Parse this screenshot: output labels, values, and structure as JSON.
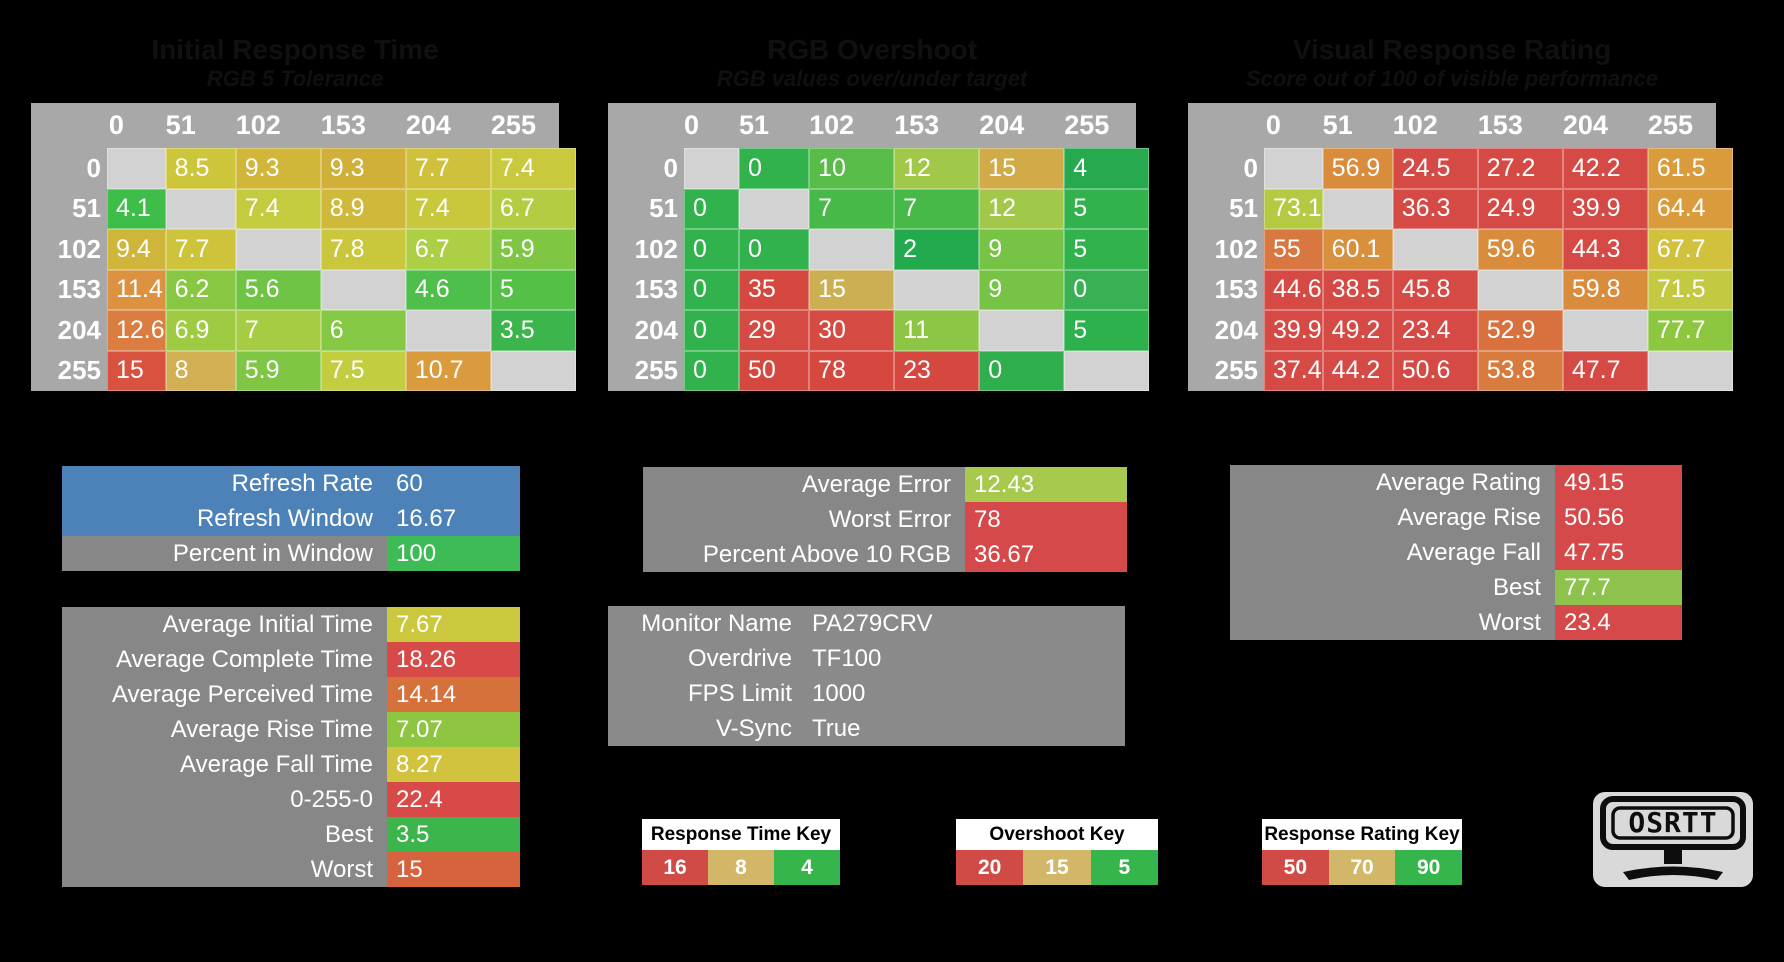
{
  "chart_data": [
    {
      "type": "heatmap",
      "title": "Initial Response Time",
      "subtitle": "RGB 5 Tolerance",
      "x": [
        "0",
        "51",
        "102",
        "153",
        "204",
        "255"
      ],
      "y": [
        "0",
        "51",
        "102",
        "153",
        "204",
        "255"
      ],
      "values": [
        [
          null,
          8.5,
          9.3,
          9.3,
          7.7,
          7.4
        ],
        [
          4.1,
          null,
          7.4,
          8.9,
          7.4,
          6.7
        ],
        [
          9.4,
          7.7,
          null,
          7.8,
          6.7,
          5.9
        ],
        [
          11.4,
          6.2,
          5.6,
          null,
          4.6,
          5
        ],
        [
          12.6,
          6.9,
          7,
          6,
          null,
          3.5
        ],
        [
          15,
          8,
          5.9,
          7.5,
          10.7,
          null
        ]
      ],
      "cell_colors": [
        [
          "#d2d2d2",
          "#cdc63b",
          "#d1b63a",
          "#d0b039",
          "#cfc13b",
          "#c9c93d"
        ],
        [
          "#3ebd49",
          "#d2d2d2",
          "#c4cb3e",
          "#d0b93a",
          "#c9c83d",
          "#b2cd42"
        ],
        [
          "#d0b53b",
          "#cdc43c",
          "#d2d2d2",
          "#cbc73d",
          "#accf45",
          "#7ec644"
        ],
        [
          "#dc9240",
          "#87c742",
          "#6fc446",
          "#d2d2d2",
          "#4fbf4b",
          "#55c048"
        ],
        [
          "#db7c41",
          "#9fcb42",
          "#a5cc43",
          "#84c843",
          "#d2d2d2",
          "#3bb54c"
        ],
        [
          "#d8523f",
          "#d2af53",
          "#7ec644",
          "#c2cd3f",
          "#d99b3d",
          "#d2d2d2"
        ]
      ]
    },
    {
      "type": "heatmap",
      "title": "RGB Overshoot",
      "subtitle": "RGB values over/under target",
      "x": [
        "0",
        "51",
        "102",
        "153",
        "204",
        "255"
      ],
      "y": [
        "0",
        "51",
        "102",
        "153",
        "204",
        "255"
      ],
      "values": [
        [
          null,
          0,
          10,
          12,
          15,
          4
        ],
        [
          0,
          null,
          7,
          7,
          12,
          5
        ],
        [
          0,
          0,
          null,
          2,
          9,
          5
        ],
        [
          0,
          35,
          15,
          null,
          9,
          0
        ],
        [
          0,
          29,
          30,
          11,
          null,
          5
        ],
        [
          0,
          50,
          78,
          23,
          0,
          null
        ]
      ],
      "cell_colors": [
        [
          "#d2d2d2",
          "#31b24c",
          "#58bc48",
          "#a2c84a",
          "#d0ab48",
          "#27a950"
        ],
        [
          "#31b24c",
          "#d2d2d2",
          "#47b948",
          "#47b948",
          "#a2c84a",
          "#31b24c"
        ],
        [
          "#31b24c",
          "#31b24c",
          "#d2d2d2",
          "#23aa4e",
          "#77c345",
          "#31b24c"
        ],
        [
          "#31b24c",
          "#d5483f",
          "#ccae53",
          "#d2d2d2",
          "#77c345",
          "#39b054"
        ],
        [
          "#31b24c",
          "#d54a42",
          "#d54a42",
          "#8dc545",
          "#d2d2d2",
          "#2db14d"
        ],
        [
          "#31b24c",
          "#d5483f",
          "#d5483f",
          "#d5483f",
          "#2fae4d",
          "#d2d2d2"
        ]
      ]
    },
    {
      "type": "heatmap",
      "title": "Visual Response Rating",
      "subtitle": "Score out of 100 of visible performance",
      "x": [
        "0",
        "51",
        "102",
        "153",
        "204",
        "255"
      ],
      "y": [
        "0",
        "51",
        "102",
        "153",
        "204",
        "255"
      ],
      "values": [
        [
          null,
          56.9,
          24.5,
          27.2,
          42.2,
          61.5
        ],
        [
          73.1,
          null,
          36.3,
          24.9,
          39.9,
          64.4
        ],
        [
          55,
          60.1,
          null,
          59.6,
          44.3,
          67.7
        ],
        [
          44.6,
          38.5,
          45.8,
          null,
          59.8,
          71.5
        ],
        [
          39.9,
          49.2,
          23.4,
          52.9,
          null,
          77.7
        ],
        [
          37.4,
          44.2,
          50.6,
          53.8,
          47.7,
          null
        ]
      ],
      "cell_colors": [
        [
          "#d2d2d2",
          "#d98d3c",
          "#d54a45",
          "#d54a45",
          "#d54a45",
          "#d99b3b"
        ],
        [
          "#b6c943",
          "#d2d2d2",
          "#d54a45",
          "#d54a45",
          "#d54a45",
          "#d99b3b"
        ],
        [
          "#d8773f",
          "#d9903c",
          "#d2d2d2",
          "#d98d3c",
          "#d54a45",
          "#d2c13c"
        ],
        [
          "#d54a45",
          "#d54a45",
          "#d54a45",
          "#d2d2d2",
          "#d98d3c",
          "#c3c941"
        ],
        [
          "#d54a45",
          "#d54a45",
          "#d54a45",
          "#d8713e",
          "#d2d2d2",
          "#8dc63f"
        ],
        [
          "#d54a45",
          "#d54a45",
          "#d54a45",
          "#d87b3e",
          "#d54a45",
          "#d2d2d2"
        ]
      ]
    }
  ],
  "panels": {
    "refresh": {
      "rows": [
        {
          "label": "Refresh Rate",
          "value": "60",
          "row_bg": "#4d82b8"
        },
        {
          "label": "Refresh Window",
          "value": "16.67",
          "row_bg": "#4d82b8"
        },
        {
          "label": "Percent in Window",
          "value": "100",
          "value_bg": "#3eba57"
        }
      ]
    },
    "times": {
      "rows": [
        {
          "label": "Average Initial Time",
          "value": "7.67",
          "value_bg": "#ccc83d"
        },
        {
          "label": "Average Complete Time",
          "value": "18.26",
          "value_bg": "#d84a47"
        },
        {
          "label": "Average Perceived Time",
          "value": "14.14",
          "value_bg": "#d7713c"
        },
        {
          "label": "Average Rise Time",
          "value": "7.07",
          "value_bg": "#8dc440"
        },
        {
          "label": "Average Fall Time",
          "value": "8.27",
          "value_bg": "#d2c33e"
        },
        {
          "label": "0-255-0",
          "value": "22.4",
          "value_bg": "#d84a47"
        },
        {
          "label": "Best",
          "value": "3.5",
          "value_bg": "#3bb54c"
        },
        {
          "label": "Worst",
          "value": "15",
          "value_bg": "#d6633d"
        }
      ]
    },
    "error": {
      "rows": [
        {
          "label": "Average Error",
          "value": "12.43",
          "value_bg": "#a7c94d"
        },
        {
          "label": "Worst Error",
          "value": "78",
          "value_bg": "#d5494a"
        },
        {
          "label": "Percent Above 10 RGB",
          "value": "36.67",
          "value_bg": "#d5494a"
        }
      ]
    },
    "monitor": {
      "rows": [
        {
          "label": "Monitor Name",
          "value": "PA279CRV"
        },
        {
          "label": "Overdrive",
          "value": "TF100"
        },
        {
          "label": "FPS Limit",
          "value": "1000"
        },
        {
          "label": "V-Sync",
          "value": "True"
        }
      ]
    },
    "rating": {
      "rows": [
        {
          "label": "Average Rating",
          "value": "49.15",
          "value_bg": "#d5494a"
        },
        {
          "label": "Average Rise",
          "value": "50.56",
          "value_bg": "#d5494a"
        },
        {
          "label": "Average Fall",
          "value": "47.75",
          "value_bg": "#d5494a"
        },
        {
          "label": "Best",
          "value": "77.7",
          "value_bg": "#8dc34c"
        },
        {
          "label": "Worst",
          "value": "23.4",
          "value_bg": "#d5494a"
        }
      ]
    }
  },
  "keys": [
    {
      "title": "Response Time Key",
      "cells": [
        {
          "value": "16",
          "bg": "#d04b45"
        },
        {
          "value": "8",
          "bg": "#d3b769"
        },
        {
          "value": "4",
          "bg": "#35b54b"
        }
      ]
    },
    {
      "title": "Overshoot Key",
      "cells": [
        {
          "value": "20",
          "bg": "#d04b45"
        },
        {
          "value": "15",
          "bg": "#d3b769"
        },
        {
          "value": "5",
          "bg": "#35b54b"
        }
      ]
    },
    {
      "title": "Response Rating Key",
      "cells": [
        {
          "value": "50",
          "bg": "#d04b45"
        },
        {
          "value": "70",
          "bg": "#d3b769"
        },
        {
          "value": "90",
          "bg": "#35b54b"
        }
      ]
    }
  ],
  "logo": {
    "text": "OSRTT"
  },
  "colors": {
    "background": "#000000",
    "table_frame": "#a8a8a8",
    "diagonal_cell": "#d2d2d2",
    "panel_gray": "#878787",
    "refresh_blue": "#4d82b8",
    "good_green": "#35b54b",
    "mid_tan": "#d3b769",
    "bad_red": "#d04b45"
  }
}
